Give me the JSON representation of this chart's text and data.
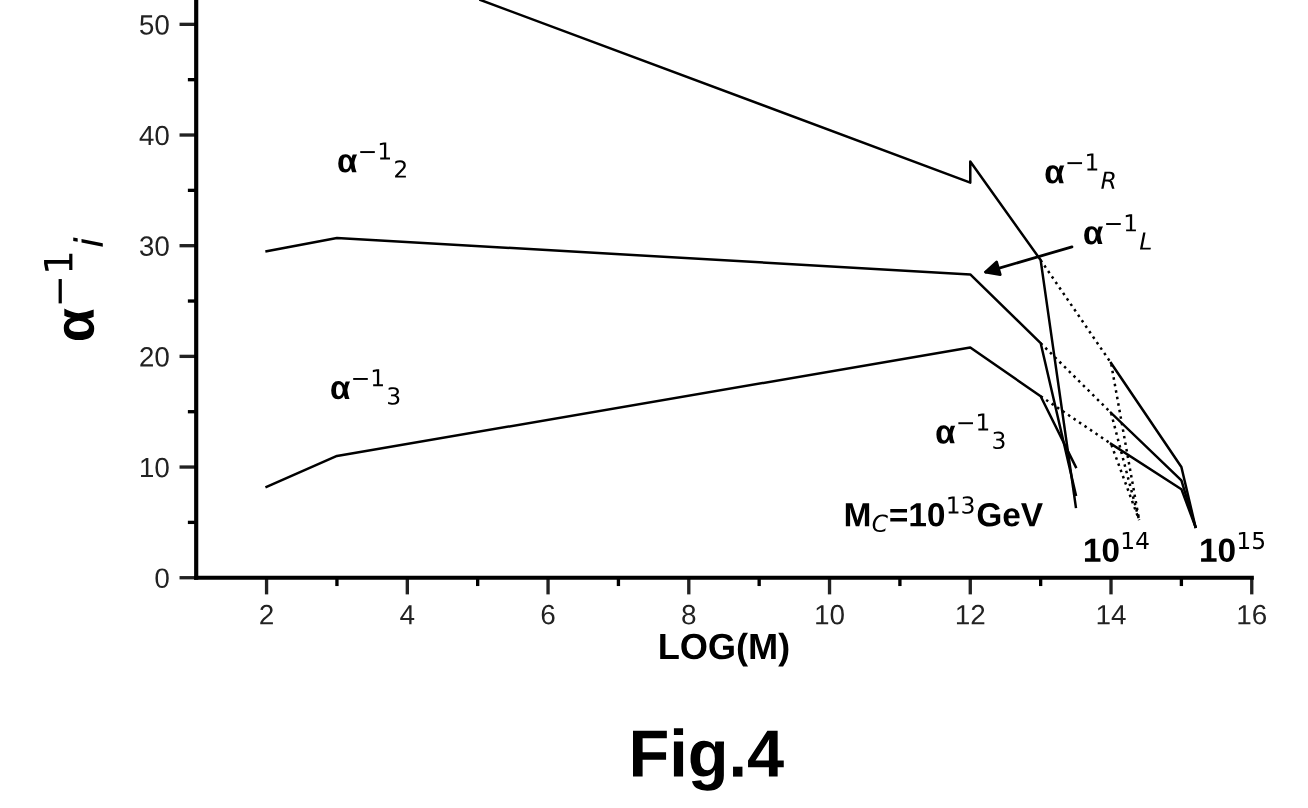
{
  "chart_data": {
    "type": "line",
    "title": "Fig.4",
    "xlabel": "LOG(M)",
    "ylabel": "α$^{−1}$$_{i}$",
    "series": [
      {
        "color": "#000000",
        "line_style": "solid",
        "x": [
          5.04,
          12,
          12,
          13,
          13.5
        ],
        "values": [
          52.2,
          35.7,
          37.6,
          28.7,
          6.4
        ]
      },
      {
        "color": "#000000",
        "line_style": "solid",
        "x": [
          2,
          3,
          12,
          13,
          13.5
        ],
        "values": [
          29.5,
          30.7,
          27.4,
          21.2,
          7.5
        ]
      },
      {
        "color": "#000000",
        "line_style": "solid",
        "x": [
          2,
          3,
          12,
          13,
          13.5
        ],
        "values": [
          8.2,
          11,
          20.8,
          16.4,
          10.0
        ]
      },
      {
        "color": "#000000",
        "line_style": "dotted",
        "x": [
          13,
          14,
          14.4
        ],
        "values": [
          28.7,
          19.4,
          5.2
        ]
      },
      {
        "color": "#000000",
        "line_style": "dotted",
        "x": [
          13,
          14,
          14.4
        ],
        "values": [
          21.2,
          14.9,
          5.2
        ]
      },
      {
        "color": "#000000",
        "line_style": "dotted",
        "x": [
          13,
          14,
          14.4
        ],
        "values": [
          16.4,
          12.1,
          5.2
        ]
      },
      {
        "color": "#000000",
        "line_style": "solid",
        "x": [
          14,
          15,
          15.2
        ],
        "values": [
          19.4,
          10.0,
          4.6
        ]
      },
      {
        "color": "#000000",
        "line_style": "solid",
        "x": [
          14,
          15,
          15.2
        ],
        "values": [
          14.9,
          8.8,
          4.6
        ]
      },
      {
        "color": "#000000",
        "line_style": "solid",
        "x": [
          14,
          15,
          15.2
        ],
        "values": [
          12.1,
          8.0,
          4.6
        ]
      }
    ],
    "annotations": [
      "α$^{−1}$$_{2}$",
      "α$^{−1}$$_{3}$",
      "α$^{−1}$$_{R}$",
      {
        "text": "α$^{−1}$$_{L}$",
        "x": 12.1,
        "y": 27.4
      },
      "α$^{−1}$$_{3}$",
      "M$_{C}$=10$^{13}$GeV",
      "10$^{14}$",
      "10$^{15}$"
    ],
    "xlim": [
      1,
      16
    ],
    "ylim": [
      0,
      52.2
    ],
    "xticks": [
      2,
      {
        "value": 3,
        "label": null
      },
      4,
      {
        "value": 5,
        "label": null
      },
      6,
      {
        "value": 7,
        "label": null
      },
      8,
      {
        "value": 9,
        "label": null
      },
      10,
      {
        "value": 11,
        "label": null
      },
      12,
      {
        "value": 13,
        "label": null
      },
      14,
      {
        "value": 15,
        "label": null
      },
      16
    ],
    "yticks": [
      0,
      {
        "value": 5,
        "label": null
      },
      10,
      {
        "value": 15,
        "label": null
      },
      20,
      {
        "value": 25,
        "label": null
      },
      30,
      {
        "value": 35,
        "label": null
      },
      40,
      {
        "value": 45,
        "label": null
      },
      50
    ],
    "grid": false,
    "legend": false,
    "marker": "none"
  }
}
